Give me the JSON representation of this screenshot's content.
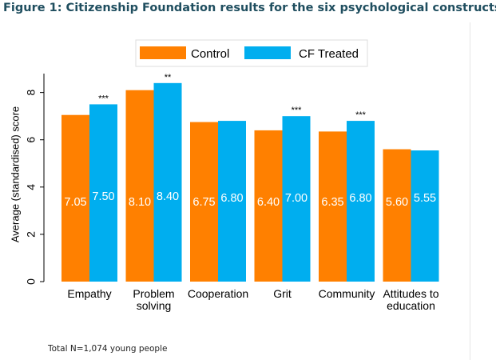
{
  "figure_title": "Figure 1: Citizenship Foundation results for the six psychological constructs",
  "footnote": "Total N=1,074 young people",
  "colors": {
    "control": "#FF8000",
    "treated": "#00AEEF"
  },
  "chart_data": {
    "type": "bar",
    "title": "Figure 1: Citizenship Foundation results for the six psychological constructs",
    "xlabel": "",
    "ylabel": "Average (standardised) score",
    "ylim": [
      0,
      8.8
    ],
    "yticks": [
      "0",
      "2",
      "4",
      "6",
      "8"
    ],
    "categories": [
      [
        "Empathy"
      ],
      [
        "Problem",
        "solving"
      ],
      [
        "Cooperation"
      ],
      [
        "Grit"
      ],
      [
        "Community"
      ],
      [
        "Attitudes to",
        "education"
      ]
    ],
    "series": [
      {
        "name": "Control",
        "values": [
          7.05,
          8.1,
          6.75,
          6.4,
          6.35,
          5.6
        ],
        "labels": [
          "7.05",
          "8.10",
          "6.75",
          "6.40",
          "6.35",
          "5.60"
        ]
      },
      {
        "name": "CF Treated",
        "values": [
          7.5,
          8.4,
          6.8,
          7.0,
          6.8,
          5.55
        ],
        "labels": [
          "7.50",
          "8.40",
          "6.80",
          "7.00",
          "6.80",
          "5.55"
        ]
      }
    ],
    "significance": [
      "***",
      "**",
      "",
      "***",
      "***",
      ""
    ],
    "legend": {
      "placement": "top",
      "entries": [
        "Control",
        "CF Treated"
      ]
    }
  }
}
